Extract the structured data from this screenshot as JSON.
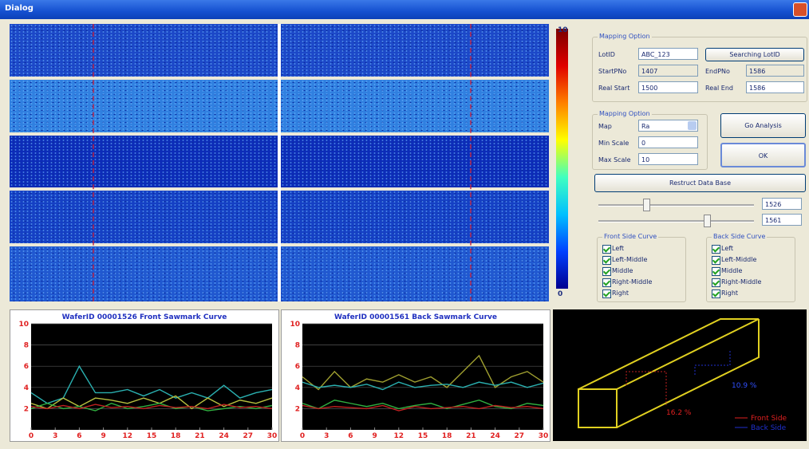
{
  "title_bar": {
    "title": "Dialog"
  },
  "colorbar": {
    "max": 10,
    "min": 0
  },
  "mapping_option": {
    "title": "Mapping Option",
    "lot_id_label": "LotID",
    "lot_id": "ABC_123",
    "search_button": "Searching LotID",
    "start_pno_label": "StartPNo",
    "start_pno": "1407",
    "end_pno_label": "EndPNo",
    "end_pno": "1586",
    "real_start_label": "Real Start",
    "real_start": "1500",
    "real_end_label": "Real End",
    "real_end": "1586"
  },
  "mapping_option_2": {
    "title": "Mapping Option",
    "map_label": "Map",
    "map": "Ra",
    "min_scale_label": "Min Scale",
    "min_scale": "0",
    "max_scale_label": "Max Scale",
    "max_scale": "10"
  },
  "buttons": {
    "go_analysis": "Go Analysis",
    "ok": "OK",
    "restruct": "Restruct Data Base"
  },
  "sliders": {
    "front": "1526",
    "back": "1561"
  },
  "front_curve": {
    "title": "Front Side Curve",
    "items": [
      "Left",
      "Left-Middle",
      "Middle",
      "Right-Middle",
      "Right"
    ]
  },
  "back_curve": {
    "title": "Back Side Curve",
    "items": [
      "Left",
      "Left-Middle",
      "Middle",
      "Right-Middle",
      "Right"
    ]
  },
  "chart_data": [
    {
      "type": "line",
      "title": "WaferID 00001526 Front Sawmark Curve",
      "x": [
        0,
        2,
        4,
        6,
        8,
        10,
        12,
        14,
        16,
        18,
        20,
        22,
        24,
        26,
        28,
        30
      ],
      "series": [
        {
          "color": "#2ab0b0",
          "values": [
            3.5,
            2.5,
            3.0,
            6.0,
            3.5,
            3.5,
            3.8,
            3.2,
            3.8,
            3.0,
            3.5,
            3.0,
            4.2,
            3.0,
            3.5,
            3.8
          ]
        },
        {
          "color": "#b8c040",
          "values": [
            2.5,
            2.0,
            3.0,
            2.2,
            3.0,
            2.8,
            2.5,
            3.0,
            2.5,
            3.2,
            2.0,
            3.0,
            2.2,
            2.8,
            2.5,
            3.0
          ]
        },
        {
          "color": "#30b040",
          "values": [
            2.0,
            2.5,
            2.0,
            2.2,
            1.8,
            2.5,
            2.0,
            2.2,
            2.5,
            2.0,
            2.2,
            1.8,
            2.0,
            2.2,
            2.0,
            2.3
          ]
        },
        {
          "color": "#c02020",
          "values": [
            2.2,
            2.0,
            2.3,
            2.0,
            2.4,
            2.1,
            2.2,
            2.0,
            2.3,
            2.1,
            2.2,
            2.0,
            2.4,
            2.1,
            2.2,
            2.0
          ]
        }
      ],
      "xlim": [
        0,
        30
      ],
      "xticks": [
        0,
        3,
        6,
        9,
        12,
        15,
        18,
        21,
        24,
        27,
        30
      ],
      "ylim": [
        0,
        10
      ],
      "yticks": [
        2,
        4,
        6,
        8,
        10
      ],
      "grid": true
    },
    {
      "type": "line",
      "title": "WaferID 00001561 Back Sawmark Curve",
      "x": [
        0,
        2,
        4,
        6,
        8,
        10,
        12,
        14,
        16,
        18,
        20,
        22,
        24,
        26,
        28,
        30
      ],
      "series": [
        {
          "color": "#a0a030",
          "values": [
            5.0,
            3.8,
            5.5,
            4.0,
            4.8,
            4.5,
            5.2,
            4.5,
            5.0,
            4.0,
            5.5,
            7.0,
            4.0,
            5.0,
            5.5,
            4.5
          ]
        },
        {
          "color": "#2ab0b0",
          "values": [
            4.5,
            4.0,
            4.2,
            4.0,
            4.3,
            3.8,
            4.5,
            4.0,
            4.2,
            4.3,
            4.0,
            4.5,
            4.2,
            4.5,
            4.0,
            4.4
          ]
        },
        {
          "color": "#30b040",
          "values": [
            2.5,
            2.0,
            2.8,
            2.5,
            2.2,
            2.5,
            2.0,
            2.3,
            2.5,
            2.0,
            2.4,
            2.8,
            2.2,
            2.0,
            2.5,
            2.3
          ]
        },
        {
          "color": "#c02020",
          "values": [
            2.3,
            2.0,
            2.2,
            2.1,
            2.0,
            2.3,
            1.8,
            2.2,
            2.0,
            2.1,
            2.2,
            2.0,
            2.3,
            2.1,
            2.2,
            2.0
          ]
        }
      ],
      "xlim": [
        0,
        30
      ],
      "xticks": [
        0,
        3,
        6,
        9,
        12,
        15,
        18,
        21,
        24,
        27,
        30
      ],
      "ylim": [
        0,
        10
      ],
      "yticks": [
        2,
        4,
        6,
        8,
        10
      ],
      "grid": true
    }
  ],
  "box_view": {
    "front_pct": "16.2 %",
    "back_pct": "10.9 %",
    "legend": [
      "Front Side",
      "Back Side"
    ]
  }
}
